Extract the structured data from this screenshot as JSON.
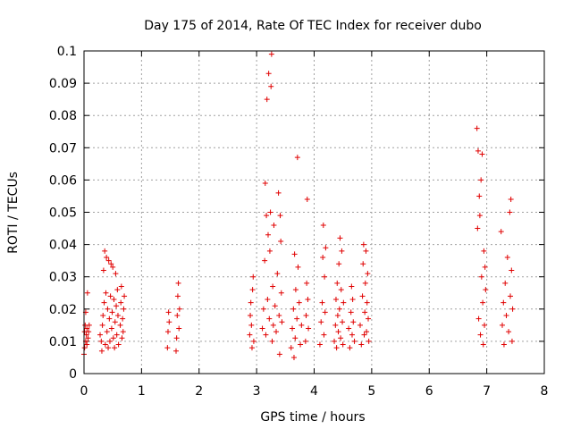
{
  "chart_data": {
    "type": "scatter",
    "title": "Day 175 of 2014, Rate Of TEC Index for receiver dubo",
    "xlabel": "GPS time / hours",
    "ylabel": "ROTI / TECUs",
    "xlim": [
      0,
      8
    ],
    "ylim": [
      0,
      0.1
    ],
    "xticks": [
      0,
      1,
      2,
      3,
      4,
      5,
      6,
      7,
      8
    ],
    "yticks": [
      0,
      0.01,
      0.02,
      0.03,
      0.04,
      0.05,
      0.06,
      0.07,
      0.08,
      0.09,
      0.1
    ],
    "ytick_labels": [
      "0",
      "0.01",
      "0.02",
      "0.03",
      "0.04",
      "0.05",
      "0.06",
      "0.07",
      "0.08",
      "0.09",
      "0.1"
    ],
    "grid": true,
    "marker": "+",
    "color": "#e00000",
    "series": [
      {
        "name": "ROTI",
        "points": [
          [
            0.0,
            0.006
          ],
          [
            0.01,
            0.013
          ],
          [
            0.01,
            0.008
          ],
          [
            0.02,
            0.015
          ],
          [
            0.03,
            0.01
          ],
          [
            0.03,
            0.019
          ],
          [
            0.04,
            0.012
          ],
          [
            0.05,
            0.009
          ],
          [
            0.05,
            0.014
          ],
          [
            0.06,
            0.025
          ],
          [
            0.07,
            0.011
          ],
          [
            0.08,
            0.013
          ],
          [
            0.09,
            0.015
          ],
          [
            0.28,
            0.012
          ],
          [
            0.3,
            0.01
          ],
          [
            0.31,
            0.007
          ],
          [
            0.32,
            0.015
          ],
          [
            0.33,
            0.018
          ],
          [
            0.34,
            0.032
          ],
          [
            0.35,
            0.022
          ],
          [
            0.36,
            0.038
          ],
          [
            0.37,
            0.009
          ],
          [
            0.38,
            0.025
          ],
          [
            0.39,
            0.036
          ],
          [
            0.4,
            0.013
          ],
          [
            0.41,
            0.02
          ],
          [
            0.42,
            0.008
          ],
          [
            0.43,
            0.035
          ],
          [
            0.44,
            0.017
          ],
          [
            0.45,
            0.01
          ],
          [
            0.46,
            0.024
          ],
          [
            0.47,
            0.034
          ],
          [
            0.48,
            0.014
          ],
          [
            0.49,
            0.019
          ],
          [
            0.5,
            0.033
          ],
          [
            0.51,
            0.011
          ],
          [
            0.52,
            0.023
          ],
          [
            0.53,
            0.008
          ],
          [
            0.54,
            0.016
          ],
          [
            0.55,
            0.031
          ],
          [
            0.56,
            0.021
          ],
          [
            0.57,
            0.012
          ],
          [
            0.58,
            0.026
          ],
          [
            0.59,
            0.018
          ],
          [
            0.6,
            0.009
          ],
          [
            0.63,
            0.015
          ],
          [
            0.64,
            0.022
          ],
          [
            0.65,
            0.027
          ],
          [
            0.66,
            0.011
          ],
          [
            0.67,
            0.017
          ],
          [
            0.68,
            0.013
          ],
          [
            0.69,
            0.02
          ],
          [
            0.7,
            0.024
          ],
          [
            1.45,
            0.008
          ],
          [
            1.46,
            0.013
          ],
          [
            1.47,
            0.019
          ],
          [
            1.48,
            0.016
          ],
          [
            1.6,
            0.007
          ],
          [
            1.61,
            0.011
          ],
          [
            1.62,
            0.018
          ],
          [
            1.63,
            0.024
          ],
          [
            1.64,
            0.028
          ],
          [
            1.65,
            0.014
          ],
          [
            1.66,
            0.02
          ],
          [
            2.88,
            0.012
          ],
          [
            2.89,
            0.018
          ],
          [
            2.9,
            0.022
          ],
          [
            2.91,
            0.015
          ],
          [
            2.92,
            0.008
          ],
          [
            2.93,
            0.026
          ],
          [
            2.94,
            0.03
          ],
          [
            2.95,
            0.01
          ],
          [
            3.1,
            0.014
          ],
          [
            3.12,
            0.02
          ],
          [
            3.14,
            0.035
          ],
          [
            3.15,
            0.059
          ],
          [
            3.16,
            0.012
          ],
          [
            3.17,
            0.049
          ],
          [
            3.18,
            0.085
          ],
          [
            3.19,
            0.023
          ],
          [
            3.2,
            0.043
          ],
          [
            3.21,
            0.093
          ],
          [
            3.22,
            0.017
          ],
          [
            3.23,
            0.038
          ],
          [
            3.24,
            0.05
          ],
          [
            3.25,
            0.089
          ],
          [
            3.26,
            0.099
          ],
          [
            3.27,
            0.01
          ],
          [
            3.28,
            0.027
          ],
          [
            3.29,
            0.015
          ],
          [
            3.3,
            0.046
          ],
          [
            3.32,
            0.021
          ],
          [
            3.34,
            0.013
          ],
          [
            3.36,
            0.031
          ],
          [
            3.38,
            0.056
          ],
          [
            3.39,
            0.018
          ],
          [
            3.4,
            0.006
          ],
          [
            3.41,
            0.049
          ],
          [
            3.42,
            0.041
          ],
          [
            3.43,
            0.025
          ],
          [
            3.44,
            0.016
          ],
          [
            3.6,
            0.008
          ],
          [
            3.62,
            0.014
          ],
          [
            3.64,
            0.02
          ],
          [
            3.65,
            0.005
          ],
          [
            3.66,
            0.037
          ],
          [
            3.67,
            0.011
          ],
          [
            3.68,
            0.026
          ],
          [
            3.7,
            0.017
          ],
          [
            3.71,
            0.067
          ],
          [
            3.72,
            0.033
          ],
          [
            3.74,
            0.022
          ],
          [
            3.76,
            0.009
          ],
          [
            3.78,
            0.015
          ],
          [
            3.85,
            0.01
          ],
          [
            3.86,
            0.018
          ],
          [
            3.87,
            0.028
          ],
          [
            3.88,
            0.054
          ],
          [
            3.89,
            0.023
          ],
          [
            3.9,
            0.014
          ],
          [
            4.1,
            0.009
          ],
          [
            4.12,
            0.016
          ],
          [
            4.14,
            0.022
          ],
          [
            4.15,
            0.036
          ],
          [
            4.16,
            0.046
          ],
          [
            4.17,
            0.012
          ],
          [
            4.18,
            0.03
          ],
          [
            4.19,
            0.019
          ],
          [
            4.2,
            0.039
          ],
          [
            4.35,
            0.01
          ],
          [
            4.37,
            0.015
          ],
          [
            4.38,
            0.023
          ],
          [
            4.39,
            0.008
          ],
          [
            4.4,
            0.028
          ],
          [
            4.41,
            0.018
          ],
          [
            4.42,
            0.013
          ],
          [
            4.43,
            0.034
          ],
          [
            4.44,
            0.02
          ],
          [
            4.45,
            0.042
          ],
          [
            4.46,
            0.011
          ],
          [
            4.47,
            0.026
          ],
          [
            4.48,
            0.038
          ],
          [
            4.49,
            0.016
          ],
          [
            4.5,
            0.009
          ],
          [
            4.51,
            0.022
          ],
          [
            4.6,
            0.014
          ],
          [
            4.62,
            0.008
          ],
          [
            4.64,
            0.019
          ],
          [
            4.65,
            0.027
          ],
          [
            4.66,
            0.012
          ],
          [
            4.67,
            0.023
          ],
          [
            4.68,
            0.016
          ],
          [
            4.7,
            0.01
          ],
          [
            4.8,
            0.015
          ],
          [
            4.82,
            0.009
          ],
          [
            4.84,
            0.024
          ],
          [
            4.85,
            0.034
          ],
          [
            4.86,
            0.04
          ],
          [
            4.87,
            0.012
          ],
          [
            4.88,
            0.019
          ],
          [
            4.89,
            0.028
          ],
          [
            4.9,
            0.038
          ],
          [
            4.91,
            0.013
          ],
          [
            4.92,
            0.022
          ],
          [
            4.93,
            0.031
          ],
          [
            4.94,
            0.017
          ],
          [
            4.95,
            0.01
          ],
          [
            6.83,
            0.076
          ],
          [
            6.84,
            0.045
          ],
          [
            6.85,
            0.069
          ],
          [
            6.86,
            0.017
          ],
          [
            6.87,
            0.055
          ],
          [
            6.88,
            0.049
          ],
          [
            6.89,
            0.012
          ],
          [
            6.9,
            0.06
          ],
          [
            6.91,
            0.03
          ],
          [
            6.92,
            0.068
          ],
          [
            6.93,
            0.022
          ],
          [
            6.94,
            0.009
          ],
          [
            6.95,
            0.038
          ],
          [
            6.96,
            0.015
          ],
          [
            6.97,
            0.033
          ],
          [
            6.98,
            0.026
          ],
          [
            7.25,
            0.044
          ],
          [
            7.27,
            0.015
          ],
          [
            7.29,
            0.022
          ],
          [
            7.3,
            0.009
          ],
          [
            7.32,
            0.028
          ],
          [
            7.34,
            0.018
          ],
          [
            7.36,
            0.036
          ],
          [
            7.38,
            0.013
          ],
          [
            7.4,
            0.05
          ],
          [
            7.41,
            0.024
          ],
          [
            7.42,
            0.054
          ],
          [
            7.43,
            0.032
          ],
          [
            7.44,
            0.01
          ],
          [
            7.45,
            0.02
          ]
        ]
      }
    ]
  }
}
